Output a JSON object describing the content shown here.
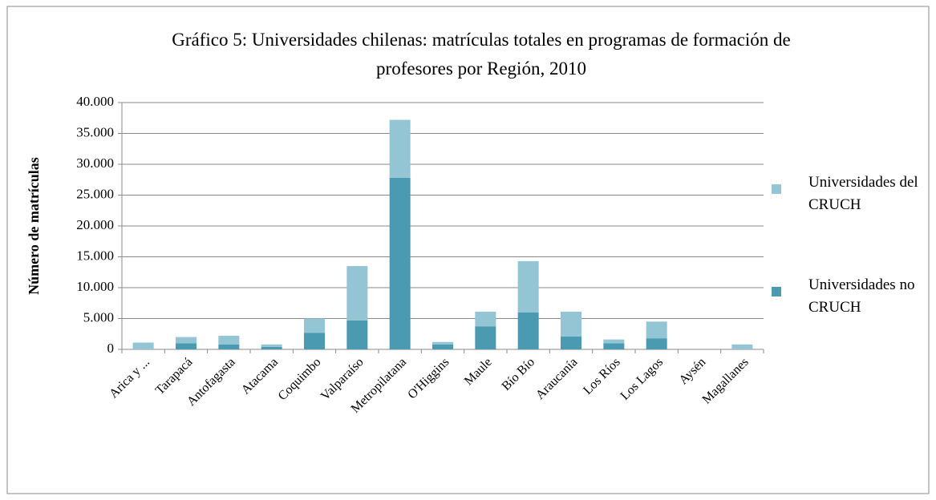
{
  "chart_data": {
    "type": "stacked_bar",
    "title": "Gráfico 5: Universidades chilenas: matrículas totales en programas de formación de profesores por Región, 2010",
    "ylabel": "Número de matrículas",
    "categories": [
      "Arica y ...",
      "Tarapacá",
      "Antofagasta",
      "Atacama",
      "Coquimbo",
      "Valparaíso",
      "Metropilatana",
      "O'Higgins",
      "Maule",
      "Bío Bío",
      "Araucanía",
      "Los Ríos",
      "Los Lagos",
      "Aysén",
      "Magallanes"
    ],
    "series": [
      {
        "name": "Universidades no CRUCH",
        "color": "#4a9bb1",
        "values": [
          0,
          1000,
          800,
          400,
          2700,
          4700,
          27800,
          800,
          3700,
          6000,
          2100,
          1000,
          1800,
          0,
          0
        ]
      },
      {
        "name": "Universidades del CRUCH",
        "color": "#93c5d4",
        "values": [
          1100,
          1000,
          1400,
          400,
          2300,
          8800,
          9400,
          400,
          2400,
          8300,
          4000,
          600,
          2700,
          0,
          800
        ]
      }
    ],
    "ylim": [
      0,
      40000
    ],
    "yticks": [
      0,
      {
        "value": 5000,
        "label": "5.000"
      },
      {
        "value": 10000,
        "label": "10.000"
      },
      {
        "value": 15000,
        "label": "15.000"
      },
      {
        "value": 20000,
        "label": "20.000"
      },
      {
        "value": 25000,
        "label": "25.000"
      },
      {
        "value": 30000,
        "label": "30.000"
      },
      {
        "value": 35000,
        "label": "35.000"
      },
      {
        "value": 40000,
        "label": "40.000"
      }
    ],
    "grid": true,
    "legend": "right"
  }
}
